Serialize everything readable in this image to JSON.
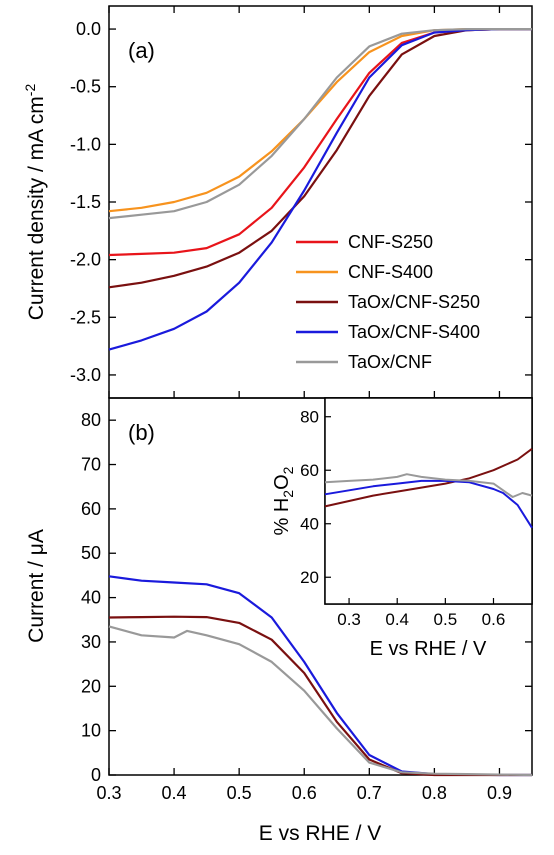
{
  "chart_data": [
    {
      "panel": "(a)",
      "type": "line",
      "ylabel": "Current density / mA cm",
      "ylabel_sup": "-2",
      "xlim": [
        0.3,
        0.95
      ],
      "ylim": [
        -3.2,
        0.2
      ],
      "xticks": [
        0.3,
        0.4,
        0.5,
        0.6,
        0.7,
        0.8,
        0.9
      ],
      "yticks": [
        0.0,
        -0.5,
        -1.0,
        -1.5,
        -2.0,
        -2.5,
        -3.0
      ],
      "ytick_labels": [
        "0.0",
        "-0.5",
        "-1.0",
        "-1.5",
        "-2.0",
        "-2.5",
        "-3.0"
      ],
      "legend": "center-right",
      "grid": false,
      "series": [
        {
          "name": "CNF-S250",
          "color": "#e8141a",
          "x": [
            0.3,
            0.35,
            0.4,
            0.45,
            0.5,
            0.55,
            0.6,
            0.65,
            0.7,
            0.75,
            0.8,
            0.85,
            0.9,
            0.95
          ],
          "y": [
            -1.96,
            -1.95,
            -1.94,
            -1.9,
            -1.78,
            -1.55,
            -1.2,
            -0.78,
            -0.38,
            -0.12,
            -0.03,
            -0.01,
            0.0,
            0.0
          ]
        },
        {
          "name": "CNF-S400",
          "color": "#f7931e",
          "x": [
            0.3,
            0.35,
            0.4,
            0.45,
            0.5,
            0.55,
            0.6,
            0.65,
            0.7,
            0.75,
            0.8,
            0.85,
            0.9,
            0.95
          ],
          "y": [
            -1.58,
            -1.55,
            -1.5,
            -1.42,
            -1.28,
            -1.06,
            -0.78,
            -0.46,
            -0.2,
            -0.06,
            -0.01,
            0.0,
            0.0,
            0.0
          ]
        },
        {
          "name": "TaOx/CNF-S250",
          "color": "#7a1010",
          "x": [
            0.3,
            0.35,
            0.4,
            0.45,
            0.5,
            0.55,
            0.6,
            0.65,
            0.7,
            0.75,
            0.8,
            0.85,
            0.9,
            0.95
          ],
          "y": [
            -2.24,
            -2.2,
            -2.14,
            -2.06,
            -1.94,
            -1.75,
            -1.45,
            -1.05,
            -0.58,
            -0.22,
            -0.06,
            -0.01,
            0.0,
            0.0
          ]
        },
        {
          "name": "TaOx/CNF-S400",
          "color": "#1a1adc",
          "x": [
            0.3,
            0.35,
            0.4,
            0.45,
            0.5,
            0.55,
            0.6,
            0.65,
            0.7,
            0.75,
            0.8,
            0.85,
            0.9,
            0.95
          ],
          "y": [
            -2.78,
            -2.7,
            -2.6,
            -2.45,
            -2.2,
            -1.85,
            -1.4,
            -0.9,
            -0.42,
            -0.14,
            -0.03,
            -0.01,
            0.0,
            0.0
          ]
        },
        {
          "name": "TaOx/CNF",
          "color": "#999999",
          "x": [
            0.3,
            0.35,
            0.4,
            0.45,
            0.5,
            0.55,
            0.6,
            0.65,
            0.7,
            0.75,
            0.8,
            0.85,
            0.9,
            0.95
          ],
          "y": [
            -1.64,
            -1.61,
            -1.58,
            -1.5,
            -1.35,
            -1.1,
            -0.78,
            -0.42,
            -0.15,
            -0.04,
            -0.01,
            0.0,
            0.0,
            0.0
          ]
        }
      ]
    },
    {
      "panel": "(b)",
      "type": "line",
      "xlabel": "E vs RHE / V",
      "ylabel": "Current / μA",
      "xlim": [
        0.3,
        0.95
      ],
      "ylim": [
        0,
        85
      ],
      "xticks": [
        0.3,
        0.4,
        0.5,
        0.6,
        0.7,
        0.8,
        0.9
      ],
      "xtick_labels": [
        "0.3",
        "0.4",
        "0.5",
        "0.6",
        "0.7",
        "0.8",
        "0.9"
      ],
      "yticks": [
        0,
        10,
        20,
        30,
        40,
        50,
        60,
        70,
        80
      ],
      "grid": false,
      "series": [
        {
          "color": "#1a1adc",
          "x": [
            0.3,
            0.35,
            0.4,
            0.45,
            0.5,
            0.55,
            0.6,
            0.65,
            0.7,
            0.75,
            0.8,
            0.85,
            0.9,
            0.95
          ],
          "y": [
            44.8,
            43.8,
            43.4,
            43.0,
            41.0,
            35.5,
            25.5,
            14.0,
            4.5,
            0.8,
            0.2,
            0.1,
            0.0,
            0.0
          ]
        },
        {
          "color": "#7a1010",
          "x": [
            0.3,
            0.35,
            0.4,
            0.45,
            0.5,
            0.55,
            0.6,
            0.65,
            0.7,
            0.75,
            0.8,
            0.85,
            0.9,
            0.95
          ],
          "y": [
            35.5,
            35.6,
            35.7,
            35.6,
            34.3,
            30.5,
            23.0,
            12.0,
            3.5,
            0.4,
            0.0,
            0.0,
            0.0,
            0.0
          ]
        },
        {
          "color": "#999999",
          "x": [
            0.3,
            0.35,
            0.4,
            0.42,
            0.45,
            0.5,
            0.55,
            0.6,
            0.65,
            0.7,
            0.75,
            0.8,
            0.85,
            0.9,
            0.95
          ],
          "y": [
            33.5,
            31.5,
            31.0,
            32.5,
            31.5,
            29.5,
            25.5,
            19.0,
            10.5,
            2.8,
            0.6,
            0.3,
            0.2,
            0.1,
            0.0
          ]
        }
      ]
    },
    {
      "panel": "inset",
      "type": "line",
      "xlabel": "E vs RHE / V",
      "ylabel": "% H",
      "ylabel_sub": "2",
      "ylabel_tail": "O",
      "ylabel_sub2": "2",
      "xlim": [
        0.25,
        0.68
      ],
      "ylim": [
        10,
        87
      ],
      "xticks": [
        0.3,
        0.4,
        0.5,
        0.6
      ],
      "xtick_labels": [
        "0.3",
        "0.4",
        "0.5",
        "0.6"
      ],
      "yticks": [
        20,
        40,
        60,
        80
      ],
      "grid": false,
      "series": [
        {
          "color": "#7a1010",
          "x": [
            0.25,
            0.3,
            0.35,
            0.4,
            0.45,
            0.5,
            0.55,
            0.6,
            0.65,
            0.68
          ],
          "y": [
            46.5,
            48.5,
            50.5,
            52.0,
            53.5,
            55.0,
            57.0,
            60.0,
            64.0,
            68.0
          ]
        },
        {
          "color": "#1a1adc",
          "x": [
            0.25,
            0.3,
            0.35,
            0.4,
            0.45,
            0.5,
            0.55,
            0.6,
            0.62,
            0.65,
            0.68
          ],
          "y": [
            51.0,
            52.5,
            54.0,
            55.0,
            56.0,
            56.0,
            55.5,
            53.0,
            51.5,
            47.0,
            38.5
          ]
        },
        {
          "color": "#999999",
          "x": [
            0.25,
            0.3,
            0.35,
            0.4,
            0.42,
            0.45,
            0.5,
            0.55,
            0.6,
            0.62,
            0.64,
            0.66,
            0.68
          ],
          "y": [
            55.5,
            56.0,
            56.5,
            57.5,
            58.5,
            57.5,
            56.5,
            56.0,
            55.0,
            52.5,
            50.0,
            51.5,
            50.5
          ]
        }
      ]
    }
  ]
}
